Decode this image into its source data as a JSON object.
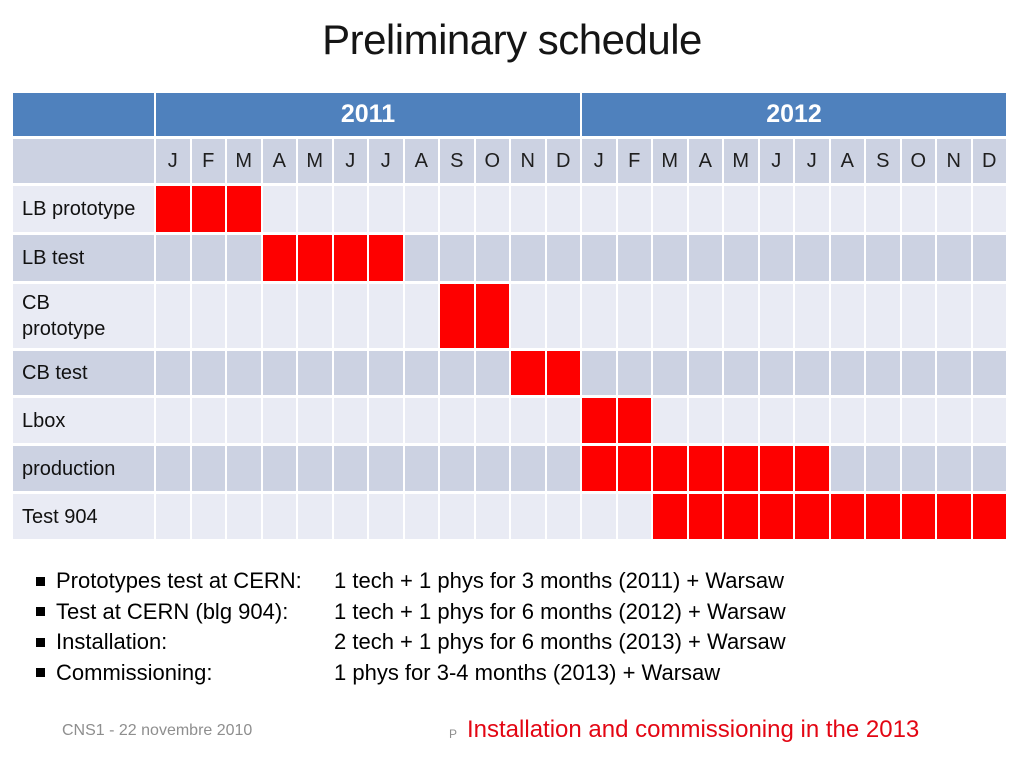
{
  "title": "Preliminary schedule",
  "colors": {
    "header_blue": "#4f81bd",
    "band_light": "#e9ebf4",
    "band_dark": "#ccd2e2",
    "bar_red": "#fe0000",
    "footer_red": "#e30613",
    "footer_gray": "#8e8e8e"
  },
  "gantt": {
    "years": [
      "2011",
      "2012"
    ],
    "month_letters": [
      "J",
      "F",
      "M",
      "A",
      "M",
      "J",
      "J",
      "A",
      "S",
      "O",
      "N",
      "D"
    ],
    "tasks": [
      {
        "label": "LB prototype",
        "start": 1,
        "end": 3
      },
      {
        "label": "LB test",
        "start": 4,
        "end": 7
      },
      {
        "label": "CB\nprototype",
        "start": 9,
        "end": 10
      },
      {
        "label": "CB test",
        "start": 11,
        "end": 12
      },
      {
        "label": "Lbox",
        "start": 13,
        "end": 14
      },
      {
        "label": "production",
        "start": 13,
        "end": 19
      },
      {
        "label": "Test 904",
        "start": 15,
        "end": 24
      }
    ]
  },
  "bullets": [
    {
      "label": "Prototypes test at CERN:",
      "value": "1 tech + 1 phys for 3 months (2011) + Warsaw"
    },
    {
      "label": "Test at CERN (blg 904):",
      "value": "1 tech + 1 phys for 6 months (2012) + Warsaw"
    },
    {
      "label": "Installation:",
      "value": "2 tech + 1 phys for 6 months (2013) + Warsaw"
    },
    {
      "label": "Commissioning:",
      "value": "1 phys for 3-4 months (2013) + Warsaw"
    }
  ],
  "footer": {
    "date": "CNS1 - 22 novembre 2010",
    "page_marker": "P",
    "note": "Installation and commissioning in the 2013"
  },
  "chart_data": {
    "type": "table",
    "subtype": "gantt-schedule",
    "title": "Preliminary schedule",
    "x_axis": {
      "years": [
        "2011",
        "2012"
      ],
      "months_per_year": [
        "J",
        "F",
        "M",
        "A",
        "M",
        "J",
        "J",
        "A",
        "S",
        "O",
        "N",
        "D"
      ]
    },
    "bar_color": "#fe0000",
    "row_banding": [
      "#e9ebf4",
      "#ccd2e2"
    ],
    "tasks": [
      {
        "name": "LB prototype",
        "start": "2011-01",
        "end": "2011-03",
        "months": 3
      },
      {
        "name": "LB test",
        "start": "2011-04",
        "end": "2011-07",
        "months": 4
      },
      {
        "name": "CB prototype",
        "start": "2011-09",
        "end": "2011-10",
        "months": 2
      },
      {
        "name": "CB test",
        "start": "2011-11",
        "end": "2011-12",
        "months": 2
      },
      {
        "name": "Lbox",
        "start": "2012-01",
        "end": "2012-02",
        "months": 2
      },
      {
        "name": "production",
        "start": "2012-01",
        "end": "2012-07",
        "months": 7
      },
      {
        "name": "Test 904",
        "start": "2012-03",
        "end": "2012-12",
        "months": 10
      }
    ]
  }
}
